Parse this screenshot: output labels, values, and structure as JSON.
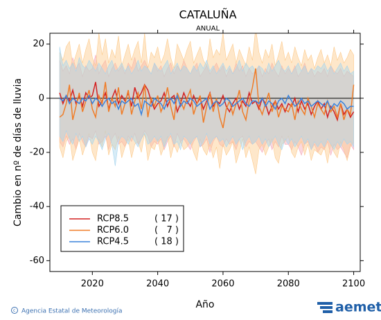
{
  "chart_data": {
    "type": "line",
    "title": "CATALUÑA",
    "subtitle": "ANUAL",
    "y_label": "Cambio en nº de días de lluvia",
    "x_label": "Año",
    "source": "Agencia Estatal de Meteorología",
    "logo": "aemet",
    "xlim": [
      2007,
      2102
    ],
    "ylim": [
      -64,
      24
    ],
    "xticks": [
      2020,
      2040,
      2060,
      2080,
      2100
    ],
    "yticks": [
      20,
      0,
      -20,
      -40,
      -60
    ],
    "legend": "lower left",
    "x": [
      2010,
      2011,
      2012,
      2013,
      2014,
      2015,
      2016,
      2017,
      2018,
      2019,
      2020,
      2021,
      2022,
      2023,
      2024,
      2025,
      2026,
      2027,
      2028,
      2029,
      2030,
      2031,
      2032,
      2033,
      2034,
      2035,
      2036,
      2037,
      2038,
      2039,
      2040,
      2041,
      2042,
      2043,
      2044,
      2045,
      2046,
      2047,
      2048,
      2049,
      2050,
      2051,
      2052,
      2053,
      2054,
      2055,
      2056,
      2057,
      2058,
      2059,
      2060,
      2061,
      2062,
      2063,
      2064,
      2065,
      2066,
      2067,
      2068,
      2069,
      2070,
      2071,
      2072,
      2073,
      2074,
      2075,
      2076,
      2077,
      2078,
      2079,
      2080,
      2081,
      2082,
      2083,
      2084,
      2085,
      2086,
      2087,
      2088,
      2089,
      2090,
      2091,
      2092,
      2093,
      2094,
      2095,
      2096,
      2097,
      2098,
      2099,
      2100
    ],
    "series": [
      {
        "name": "RCP8.5",
        "count": {
          "value": 17,
          "label": "( 17 )"
        },
        "color": "#d42020",
        "band_color": "#f4a6b8",
        "values": [
          2,
          -2,
          1,
          -1,
          3,
          -2,
          1,
          -3,
          2,
          0,
          1,
          6,
          -3,
          -1,
          2,
          -4,
          0,
          3,
          -2,
          1,
          -1,
          2,
          -3,
          4,
          0,
          2,
          5,
          3,
          -1,
          -4,
          -2,
          -1,
          2,
          -3,
          0,
          1,
          -5,
          -2,
          2,
          -1,
          -3,
          1,
          -2,
          0,
          -4,
          -1,
          2,
          -3,
          -1,
          -2,
          1,
          -3,
          -5,
          -2,
          0,
          -4,
          -1,
          -3,
          2,
          -2,
          -1,
          -4,
          0,
          -2,
          -6,
          -3,
          -1,
          -4,
          -2,
          -5,
          -2,
          -3,
          0,
          -5,
          -1,
          -4,
          -2,
          -6,
          -3,
          -1,
          -4,
          -2,
          -7,
          -3,
          -5,
          -8,
          -2,
          -6,
          -4,
          -7,
          -5
        ],
        "band": {
          "upper": [
            14,
            10,
            12,
            9,
            15,
            11,
            13,
            8,
            12,
            10,
            11,
            16,
            9,
            12,
            14,
            8,
            11,
            13,
            10,
            12,
            9,
            13,
            11,
            15,
            10,
            12,
            14,
            11,
            9,
            13,
            10,
            12,
            8,
            11,
            13,
            9,
            12,
            10,
            14,
            11,
            9,
            11,
            13,
            8,
            10,
            12,
            9,
            11,
            13,
            10,
            12,
            8,
            11,
            9,
            13,
            10,
            12,
            8,
            11,
            9,
            10,
            12,
            8,
            11,
            9,
            13,
            10,
            8,
            12,
            9,
            11,
            9,
            12,
            8,
            10,
            13,
            9,
            11,
            8,
            10,
            9,
            11,
            8,
            12,
            10,
            9,
            11,
            8,
            10,
            9,
            8
          ],
          "lower": [
            -16,
            -18,
            -14,
            -17,
            -15,
            -19,
            -13,
            -16,
            -18,
            -14,
            -15,
            -12,
            -17,
            -16,
            -14,
            -19,
            -15,
            -13,
            -17,
            -16,
            -18,
            -14,
            -16,
            -13,
            -17,
            -15,
            -12,
            -14,
            -18,
            -16,
            -17,
            -15,
            -19,
            -16,
            -14,
            -18,
            -13,
            -16,
            -15,
            -17,
            -19,
            -16,
            -14,
            -18,
            -17,
            -15,
            -20,
            -16,
            -14,
            -17,
            -18,
            -15,
            -17,
            -16,
            -19,
            -15,
            -14,
            -18,
            -16,
            -17,
            -16,
            -18,
            -20,
            -17,
            -15,
            -19,
            -16,
            -18,
            -14,
            -17,
            -17,
            -19,
            -16,
            -18,
            -21,
            -17,
            -16,
            -19,
            -17,
            -20,
            -18,
            -19,
            -16,
            -21,
            -17,
            -19,
            -18,
            -20,
            -22,
            -17,
            -19
          ]
        }
      },
      {
        "name": "RCP6.0",
        "count": {
          "value": 7,
          "label": "(   7 )"
        },
        "color": "#f07d28",
        "band_color": "#fcc98a",
        "values": [
          -7,
          -6,
          -2,
          5,
          -8,
          -3,
          2,
          -5,
          -1,
          3,
          -4,
          -7,
          1,
          -2,
          6,
          -5,
          0,
          -3,
          4,
          -6,
          -2,
          3,
          -6,
          -1,
          2,
          -4,
          5,
          -7,
          0,
          -3,
          1,
          -5,
          -2,
          4,
          -3,
          -8,
          2,
          -1,
          -4,
          0,
          3,
          -6,
          -2,
          1,
          -9,
          -3,
          2,
          -5,
          0,
          -7,
          -11,
          -4,
          -1,
          -6,
          -2,
          3,
          -5,
          -8,
          -1,
          4,
          11,
          -3,
          -6,
          -2,
          2,
          -5,
          -1,
          -7,
          -3,
          -4,
          -5,
          -2,
          -8,
          -1,
          -4,
          -6,
          0,
          -3,
          -7,
          -2,
          -4,
          -6,
          -1,
          -5,
          -3,
          -7,
          -2,
          -8,
          -4,
          -6,
          5
        ],
        "band": {
          "upper": [
            17,
            14,
            19,
            21,
            12,
            16,
            20,
            13,
            18,
            22,
            15,
            12,
            24,
            16,
            22,
            13,
            18,
            15,
            23,
            12,
            16,
            20,
            14,
            18,
            21,
            13,
            24,
            11,
            17,
            15,
            19,
            13,
            16,
            22,
            15,
            11,
            20,
            17,
            14,
            18,
            21,
            13,
            16,
            19,
            14,
            12,
            22,
            15,
            18,
            16,
            24,
            14,
            17,
            20,
            13,
            18,
            15,
            12,
            19,
            14,
            26,
            17,
            13,
            18,
            15,
            20,
            12,
            16,
            21,
            14,
            17,
            13,
            19,
            15,
            12,
            18,
            14,
            16,
            11,
            15,
            18,
            13,
            16,
            12,
            19,
            14,
            17,
            13,
            15,
            18,
            16
          ],
          "lower": [
            -18,
            -22,
            -16,
            -14,
            -23,
            -19,
            -15,
            -21,
            -17,
            -13,
            -20,
            -23,
            -15,
            -18,
            -12,
            -21,
            -17,
            -19,
            -14,
            -22,
            -18,
            -15,
            -22,
            -17,
            -16,
            -20,
            -13,
            -23,
            -18,
            -19,
            -15,
            -21,
            -18,
            -14,
            -22,
            -17,
            -20,
            -16,
            -19,
            -18,
            -16,
            -20,
            -23,
            -15,
            -19,
            -21,
            -17,
            -22,
            -18,
            -26,
            -17,
            -21,
            -19,
            -16,
            -24,
            -20,
            -15,
            -22,
            -18,
            -23,
            -28,
            -19,
            -17,
            -21,
            -18,
            -15,
            -22,
            -24,
            -17,
            -16,
            -14,
            -20,
            -22,
            -18,
            -16,
            -21,
            -17,
            -23,
            -19,
            -20,
            -21,
            -18,
            -24,
            -17,
            -20,
            -22,
            -16,
            -19,
            -23,
            -18,
            -16
          ]
        }
      },
      {
        "name": "RCP4.5",
        "count": {
          "value": 18,
          "label": "( 18 )"
        },
        "color": "#3a82dc",
        "band_color": "#a6d4ee",
        "values": [
          0,
          -1,
          1,
          -2,
          0,
          -1,
          -2,
          0,
          -1,
          1,
          -2,
          0,
          -1,
          -3,
          -1,
          0,
          -2,
          -1,
          -4,
          -1,
          -2,
          -1,
          0,
          -3,
          -2,
          -6,
          -1,
          -2,
          -3,
          0,
          -1,
          -2,
          -4,
          -1,
          0,
          -2,
          1,
          -3,
          -1,
          -2,
          0,
          -1,
          -3,
          -2,
          -1,
          0,
          -4,
          -2,
          -1,
          -3,
          -2,
          0,
          -1,
          -3,
          -2,
          -1,
          0,
          -2,
          -3,
          -1,
          -1,
          -2,
          0,
          -3,
          -1,
          -2,
          -4,
          -1,
          0,
          -2,
          1,
          -1,
          -3,
          -2,
          0,
          -2,
          -1,
          -3,
          -2,
          -1,
          -2,
          -3,
          -1,
          -4,
          -2,
          -3,
          -1,
          -2,
          -4,
          -3,
          -3
        ],
        "band": {
          "upper": [
            19,
            12,
            14,
            11,
            13,
            10,
            15,
            12,
            11,
            14,
            12,
            10,
            13,
            11,
            9,
            12,
            14,
            10,
            11,
            13,
            10,
            12,
            9,
            11,
            14,
            10,
            12,
            11,
            9,
            13,
            11,
            10,
            12,
            14,
            9,
            11,
            13,
            10,
            12,
            11,
            9,
            12,
            10,
            13,
            11,
            14,
            10,
            12,
            9,
            11,
            13,
            10,
            12,
            9,
            11,
            14,
            10,
            13,
            11,
            12,
            10,
            12,
            11,
            9,
            13,
            10,
            12,
            14,
            11,
            10,
            12,
            9,
            11,
            13,
            10,
            12,
            9,
            11,
            10,
            12,
            11,
            13,
            10,
            12,
            9,
            11,
            13,
            10,
            12,
            9,
            10
          ],
          "lower": [
            -14,
            -16,
            -12,
            -15,
            -17,
            -13,
            -16,
            -14,
            -18,
            -15,
            -17,
            -14,
            -16,
            -19,
            -15,
            -13,
            -17,
            -25,
            -16,
            -14,
            -15,
            -17,
            -14,
            -16,
            -18,
            -15,
            -13,
            -17,
            -16,
            -14,
            -16,
            -14,
            -18,
            -15,
            -13,
            -17,
            -16,
            -19,
            -14,
            -15,
            -17,
            -15,
            -14,
            -18,
            -16,
            -13,
            -17,
            -15,
            -14,
            -16,
            -15,
            -18,
            -16,
            -14,
            -17,
            -15,
            -19,
            -16,
            -14,
            -17,
            -16,
            -14,
            -17,
            -15,
            -18,
            -16,
            -14,
            -17,
            -19,
            -15,
            -17,
            -15,
            -18,
            -16,
            -14,
            -17,
            -15,
            -19,
            -16,
            -18,
            -16,
            -18,
            -15,
            -17,
            -19,
            -16,
            -18,
            -15,
            -17,
            -16,
            -18
          ]
        }
      }
    ]
  }
}
